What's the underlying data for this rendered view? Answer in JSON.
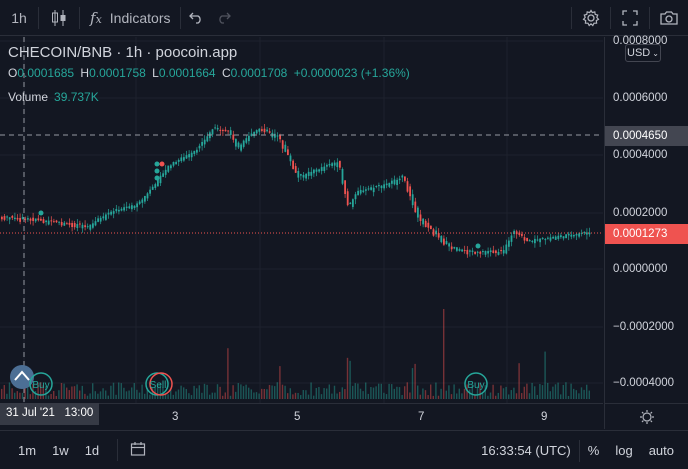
{
  "toolbar": {
    "interval": "1h",
    "indicators_label": "Indicators"
  },
  "legend": {
    "title": "CHECOIN/BNB · 1h · poocoin.app",
    "o_label": "O",
    "o_value": "0.0001685",
    "h_label": "H",
    "h_value": "0.0001758",
    "l_label": "L",
    "l_value": "0.0001664",
    "c_label": "C",
    "c_value": "0.0001708",
    "change": "+0.0000023 (+1.36%)",
    "volume_label": "Volume",
    "volume_value": "39.737K"
  },
  "price_axis": {
    "currency": "USD",
    "ticks": [
      "0.0008000",
      "0.0006000",
      "0.0004000",
      "0.0002000",
      "0.0000000",
      "−0.0002000",
      "−0.0004000"
    ],
    "crosshair_price": "0.0004650",
    "last_price": "0.0001273"
  },
  "time_axis": {
    "labels": [
      "3",
      "5",
      "7",
      "9"
    ],
    "cursor_label": "31 Jul '21   13:00"
  },
  "markers": {
    "buy1": "Buy",
    "sell1": "Sell",
    "buy2": "Buy"
  },
  "bottombar": {
    "ranges": [
      "1m",
      "1w",
      "1d"
    ],
    "clock": "16:33:54 (UTC)",
    "percent": "%",
    "log": "log",
    "auto": "auto"
  },
  "colors": {
    "up": "#26a69a",
    "down": "#ef5350",
    "background": "#131722"
  }
}
